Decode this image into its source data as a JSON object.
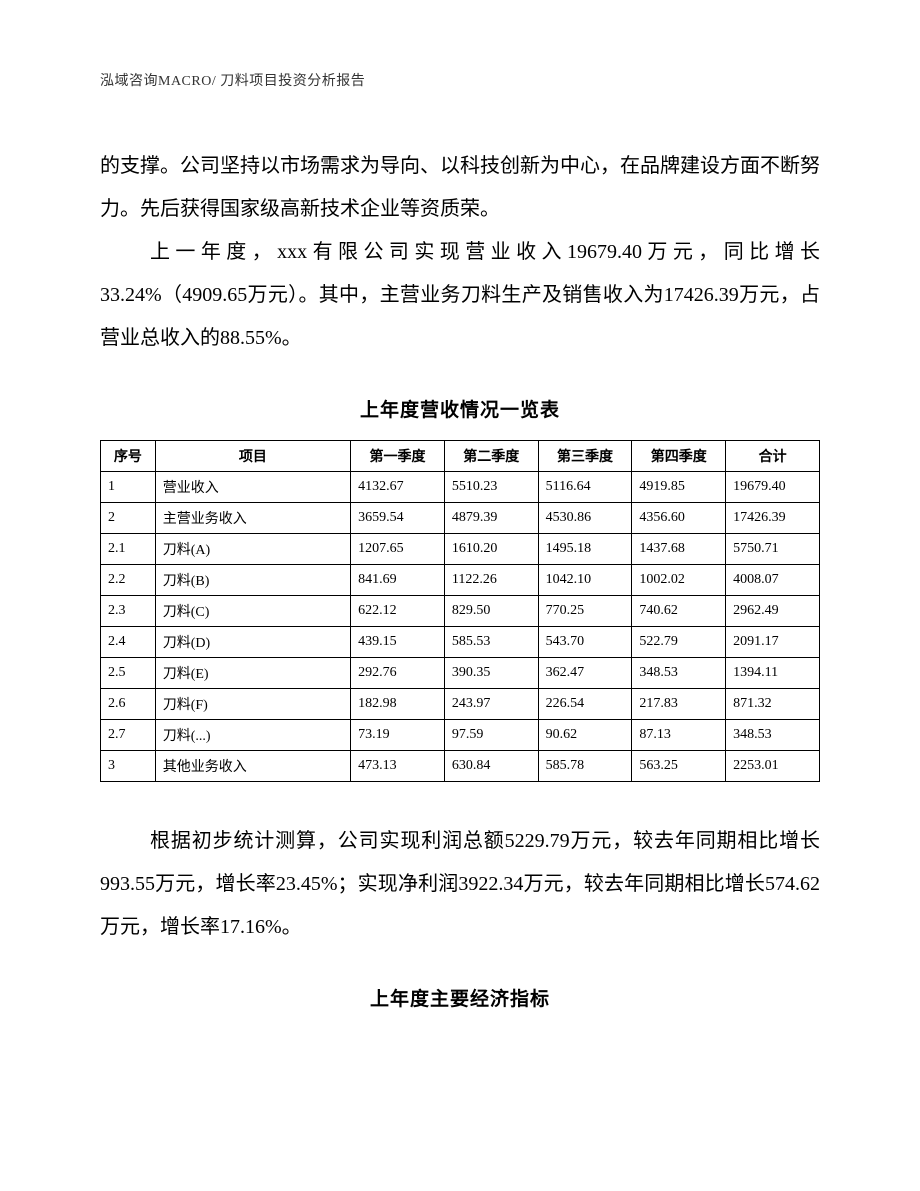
{
  "header": {
    "text": "泓域咨询MACRO/    刀料项目投资分析报告"
  },
  "para1": {
    "line1": "的支撑。公司坚持以市场需求为导向、以科技创新为中心，在品牌建设方面不断努力。先后获得国家级高新技术企业等资质荣。",
    "line2": "上一年度，xxx有限公司实现营业收入19679.40万元，同比增长33.24%（4909.65万元）。其中，主营业务刀料生产及销售收入为17426.39万元，占营业总收入的88.55%。"
  },
  "table1": {
    "title": "上年度营收情况一览表",
    "columns": [
      "序号",
      "项目",
      "第一季度",
      "第二季度",
      "第三季度",
      "第四季度",
      "合计"
    ],
    "rows": [
      [
        "1",
        "营业收入",
        "4132.67",
        "5510.23",
        "5116.64",
        "4919.85",
        "19679.40"
      ],
      [
        "2",
        "主营业务收入",
        "3659.54",
        "4879.39",
        "4530.86",
        "4356.60",
        "17426.39"
      ],
      [
        "2.1",
        "刀料(A)",
        "1207.65",
        "1610.20",
        "1495.18",
        "1437.68",
        "5750.71"
      ],
      [
        "2.2",
        "刀料(B)",
        "841.69",
        "1122.26",
        "1042.10",
        "1002.02",
        "4008.07"
      ],
      [
        "2.3",
        "刀料(C)",
        "622.12",
        "829.50",
        "770.25",
        "740.62",
        "2962.49"
      ],
      [
        "2.4",
        "刀料(D)",
        "439.15",
        "585.53",
        "543.70",
        "522.79",
        "2091.17"
      ],
      [
        "2.5",
        "刀料(E)",
        "292.76",
        "390.35",
        "362.47",
        "348.53",
        "1394.11"
      ],
      [
        "2.6",
        "刀料(F)",
        "182.98",
        "243.97",
        "226.54",
        "217.83",
        "871.32"
      ],
      [
        "2.7",
        "刀料(...)",
        "73.19",
        "97.59",
        "90.62",
        "87.13",
        "348.53"
      ],
      [
        "3",
        "其他业务收入",
        "473.13",
        "630.84",
        "585.78",
        "563.25",
        "2253.01"
      ]
    ]
  },
  "para2": {
    "text": "根据初步统计测算，公司实现利润总额5229.79万元，较去年同期相比增长993.55万元，增长率23.45%；实现净利润3922.34万元，较去年同期相比增长574.62万元，增长率17.16%。"
  },
  "section2": {
    "title": "上年度主要经济指标"
  }
}
